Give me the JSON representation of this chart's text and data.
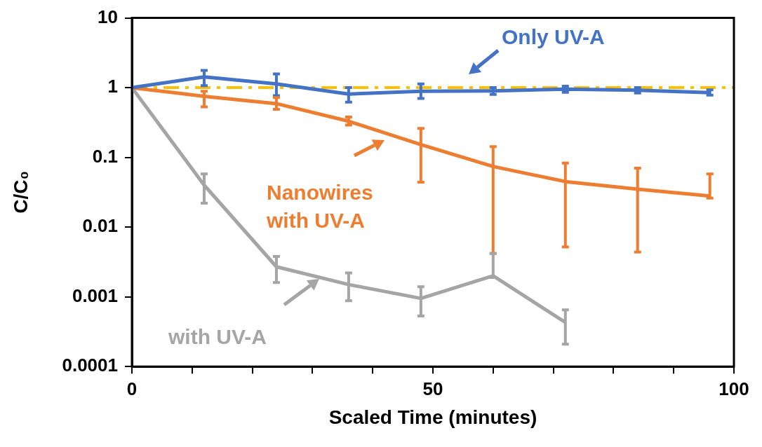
{
  "chart_data": {
    "type": "line",
    "xlabel": "Scaled Time (minutes)",
    "ylabel": "C/C₀",
    "x": [
      0,
      12,
      24,
      36,
      48,
      60,
      72,
      84,
      96
    ],
    "xlim": [
      0,
      100
    ],
    "xticks": [
      0,
      {
        "value": 10,
        "label": null
      },
      {
        "value": 20,
        "label": null
      },
      {
        "value": 30,
        "label": null
      },
      {
        "value": 40,
        "label": null
      },
      50,
      {
        "value": 60,
        "label": null
      },
      {
        "value": 70,
        "label": null
      },
      {
        "value": 80,
        "label": null
      },
      {
        "value": 90,
        "label": null
      },
      100
    ],
    "ylim": [
      0.0001,
      10
    ],
    "yticks": [
      0.0001,
      0.001,
      0.01,
      0.1,
      1,
      10
    ],
    "log": true,
    "grid": false,
    "legend": false,
    "marker": "none",
    "line_style": "solid",
    "series": [
      {
        "name": "Only UV-A",
        "color": "#4472c4",
        "values": [
          1,
          1.43,
          1.13,
          0.81,
          0.89,
          0.9,
          0.95,
          0.92,
          0.85
        ],
        "errors": [
          null,
          [
            1.07,
            1.77
          ],
          [
            0.77,
            1.57
          ],
          [
            0.62,
            1.0
          ],
          [
            0.7,
            1.13
          ],
          [
            0.8,
            1.0
          ],
          [
            0.86,
            1.05
          ],
          [
            0.84,
            1.0
          ],
          [
            0.78,
            0.93
          ]
        ]
      },
      {
        "name": "Nanowires with UV-A",
        "color": "#ed7d31",
        "values": [
          1,
          0.75,
          0.59,
          0.33,
          0.153,
          0.074,
          0.045,
          0.035,
          0.028
        ],
        "errors": [
          null,
          [
            0.53,
            0.89
          ],
          [
            0.49,
            0.72
          ],
          [
            0.29,
            0.38
          ],
          [
            0.044,
            0.26
          ],
          [
            0.0042,
            0.143
          ],
          [
            0.0052,
            0.083
          ],
          [
            0.0044,
            0.07
          ],
          [
            0.026,
            0.058
          ]
        ]
      },
      {
        "name": "with UV-A",
        "color": "#a5a5a5",
        "x": [
          0,
          12,
          24,
          36,
          48,
          60,
          72
        ],
        "values": [
          1,
          0.04,
          0.0027,
          0.0015,
          0.00095,
          0.002,
          0.00043
        ],
        "errors": [
          null,
          [
            0.022,
            0.058
          ],
          [
            0.0016,
            0.0038
          ],
          [
            0.00088,
            0.0022
          ],
          [
            0.00053,
            0.0014
          ],
          [
            0.0019,
            0.0042
          ],
          [
            0.00021,
            0.00065
          ]
        ]
      }
    ],
    "ref_lines": [
      {
        "axis": "y",
        "value": 1,
        "color": "#ffc000",
        "line_style": "dashed"
      }
    ]
  }
}
